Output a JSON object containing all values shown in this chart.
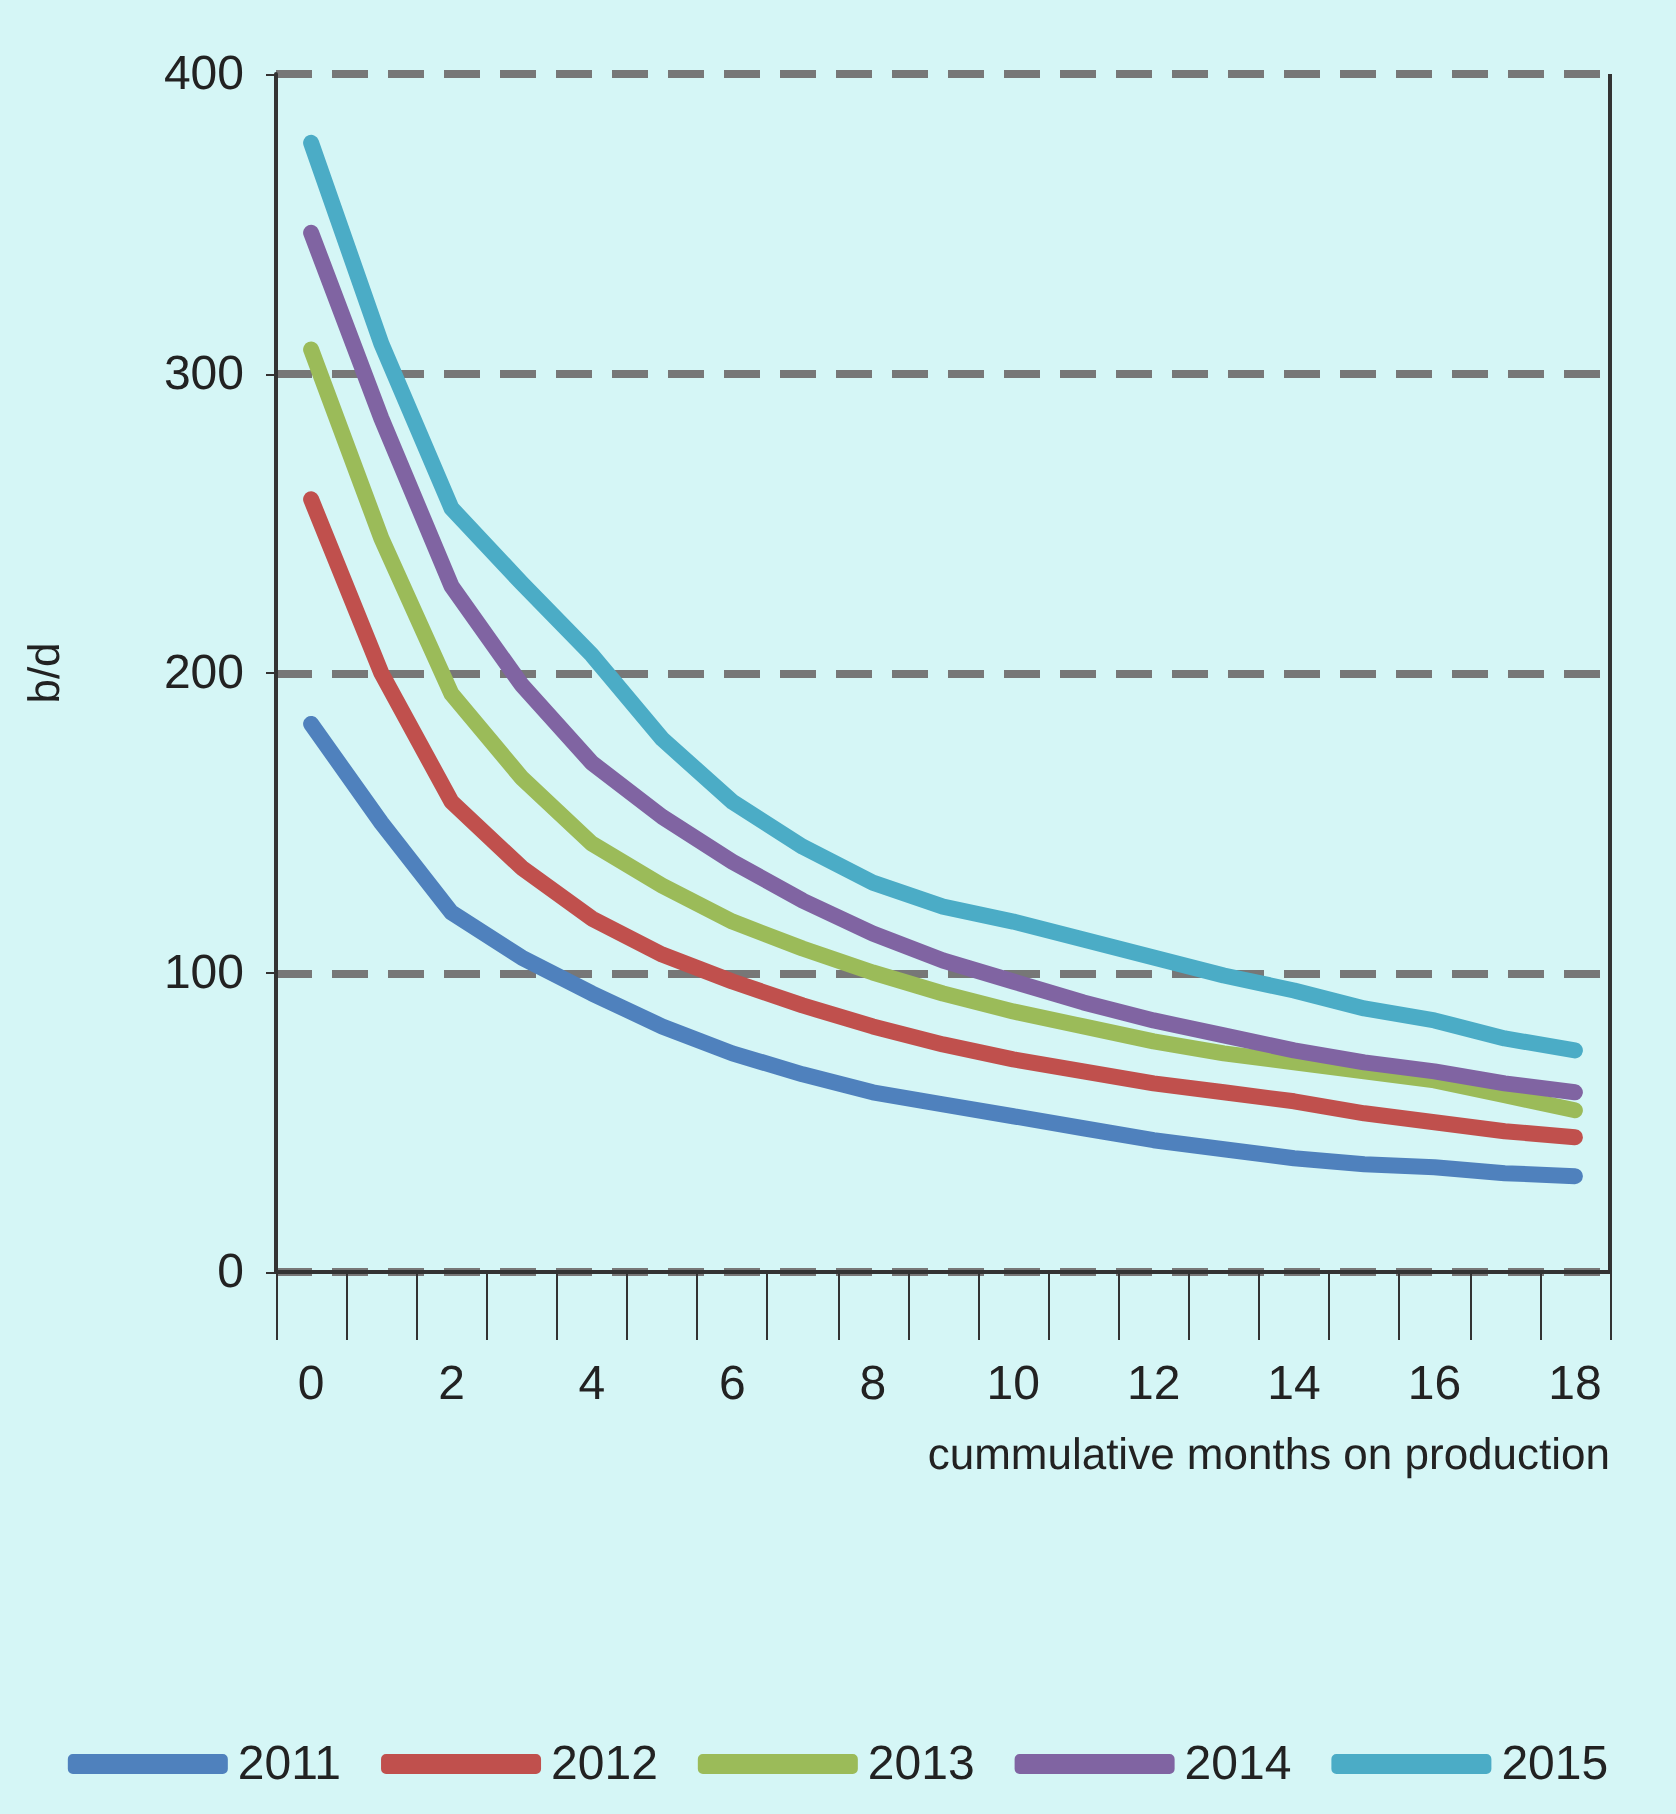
{
  "chart_data": {
    "type": "line",
    "xlabel": "cummulative months on production",
    "ylabel": "b/d",
    "categories": [
      "0",
      null,
      "2",
      null,
      "4",
      null,
      "6",
      null,
      "8",
      null,
      "10",
      null,
      "12",
      null,
      "14",
      null,
      "16",
      null,
      "18"
    ],
    "series": [
      {
        "name": "2011",
        "color": "#4f81bd",
        "values": [
          183,
          150,
          120,
          105,
          93,
          82,
          73,
          66,
          60,
          56,
          52,
          48,
          44,
          41,
          38,
          36,
          35,
          33,
          32
        ]
      },
      {
        "name": "2012",
        "color": "#c0504d",
        "values": [
          258,
          200,
          157,
          135,
          118,
          106,
          97,
          89,
          82,
          76,
          71,
          67,
          63,
          60,
          57,
          53,
          50,
          47,
          45
        ]
      },
      {
        "name": "2013",
        "color": "#9bbb59",
        "values": [
          308,
          245,
          193,
          165,
          143,
          129,
          117,
          108,
          100,
          93,
          87,
          82,
          77,
          73,
          70,
          67,
          64,
          59,
          54
        ]
      },
      {
        "name": "2014",
        "color": "#8064a2",
        "values": [
          347,
          285,
          229,
          196,
          170,
          152,
          137,
          124,
          113,
          104,
          97,
          90,
          84,
          79,
          74,
          70,
          67,
          63,
          60
        ]
      },
      {
        "name": "2015",
        "color": "#4bacc6",
        "values": [
          377,
          310,
          255,
          230,
          206,
          178,
          157,
          142,
          130,
          122,
          117,
          111,
          105,
          99,
          94,
          88,
          84,
          78,
          74
        ]
      }
    ],
    "ylim": [
      0,
      400
    ],
    "yticks": [
      0,
      100,
      200,
      300,
      400
    ],
    "grid": "y",
    "legend": "bottom",
    "marker": "none",
    "line_style": "solid"
  }
}
